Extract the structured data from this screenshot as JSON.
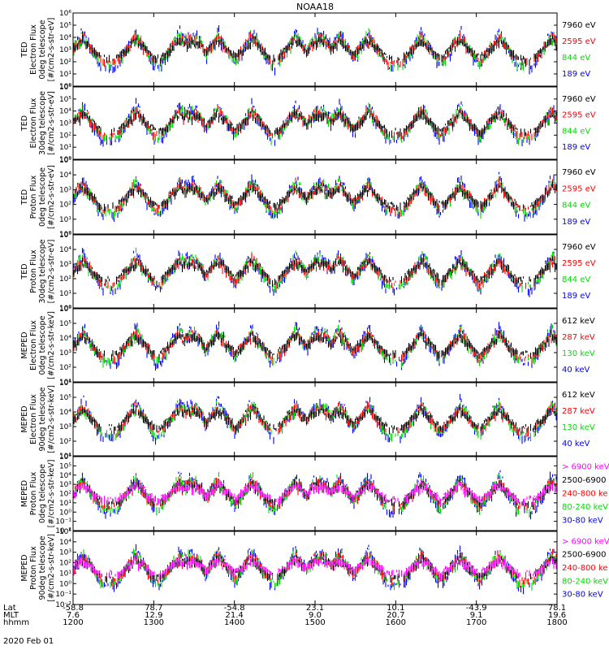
{
  "title": "NOAA18",
  "date": "2020 Feb 01",
  "colors": {
    "blue": "#0000ff",
    "red": "#ff0000",
    "green": "#00dd00",
    "black": "#000000",
    "magenta": "#ff00ff"
  },
  "footer": {
    "row_labels": [
      "Lat",
      "MLT",
      "hhmm"
    ],
    "columns": [
      {
        "lat": "-58.8",
        "mlt": "7.6",
        "hhmm": "1200"
      },
      {
        "lat": "78.7",
        "mlt": "12.9",
        "hhmm": "1300"
      },
      {
        "lat": "-54.8",
        "mlt": "21.4",
        "hhmm": "1400"
      },
      {
        "lat": "23.1",
        "mlt": "9.0",
        "hhmm": "1500"
      },
      {
        "lat": "10.1",
        "mlt": "20.7",
        "hhmm": "1600"
      },
      {
        "lat": "-43.9",
        "mlt": "9.1",
        "hhmm": "1700"
      },
      {
        "lat": "78.1",
        "mlt": "19.6",
        "hhmm": "1800"
      }
    ]
  },
  "chart_data": {
    "type": "line",
    "title": "NOAA18",
    "x_range": [
      "1200",
      "1800"
    ],
    "panels": [
      {
        "ylabel": [
          "TED",
          "Electron Flux",
          "0deg telescope",
          "[#/cm2-s-str-eV]"
        ],
        "ylim_exp": [
          0,
          6
        ],
        "legend": [
          {
            "label": "7960 eV",
            "color": "black"
          },
          {
            "label": "2595 eV",
            "color": "red"
          },
          {
            "label": "844 eV",
            "color": "green"
          },
          {
            "label": "189 eV",
            "color": "blue"
          }
        ]
      },
      {
        "ylabel": [
          "TED",
          "Electron Flux",
          "30deg telescope",
          "[#/cm2-s-str-eV]"
        ],
        "ylim_exp": [
          0,
          6
        ],
        "legend": [
          {
            "label": "7960 eV",
            "color": "black"
          },
          {
            "label": "2595 eV",
            "color": "red"
          },
          {
            "label": "844 eV",
            "color": "green"
          },
          {
            "label": "189 eV",
            "color": "blue"
          }
        ]
      },
      {
        "ylabel": [
          "TED",
          "Proton Flux",
          "0deg telescope",
          "[#/cm2-s-str-eV]"
        ],
        "ylim_exp": [
          0,
          5
        ],
        "legend": [
          {
            "label": "7960 eV",
            "color": "black"
          },
          {
            "label": "2595 eV",
            "color": "red"
          },
          {
            "label": "844 eV",
            "color": "green"
          },
          {
            "label": "189 eV",
            "color": "blue"
          }
        ]
      },
      {
        "ylabel": [
          "TED",
          "Proton Flux",
          "30deg telescope",
          "[#/cm2-s-str-eV]"
        ],
        "ylim_exp": [
          0,
          5
        ],
        "legend": [
          {
            "label": "7960 eV",
            "color": "black"
          },
          {
            "label": "2595 eV",
            "color": "red"
          },
          {
            "label": "844 eV",
            "color": "green"
          },
          {
            "label": "189 eV",
            "color": "blue"
          }
        ]
      },
      {
        "ylabel": [
          "MEPED",
          "Electron Flux",
          "0deg telescope",
          "[#/cm2-s-str-keV]"
        ],
        "ylim_exp": [
          1,
          6
        ],
        "legend": [
          {
            "label": "612 keV",
            "color": "black"
          },
          {
            "label": "287 keV",
            "color": "red"
          },
          {
            "label": "130 keV",
            "color": "green"
          },
          {
            "label": "40 keV",
            "color": "blue"
          }
        ]
      },
      {
        "ylabel": [
          "MEPED",
          "Electron Flux",
          "90deg telescope",
          "[#/cm2-s-str-keV]"
        ],
        "ylim_exp": [
          1,
          6
        ],
        "legend": [
          {
            "label": "612 keV",
            "color": "black"
          },
          {
            "label": "287 keV",
            "color": "red"
          },
          {
            "label": "130 keV",
            "color": "green"
          },
          {
            "label": "40 keV",
            "color": "blue"
          }
        ]
      },
      {
        "ylabel": [
          "MEPED",
          "Proton Flux",
          "0deg telescope",
          "[#/cm2-s-str-keV]"
        ],
        "ylim_exp": [
          -2,
          6
        ],
        "legend": [
          {
            "label": "> 6900 keV",
            "color": "magenta"
          },
          {
            "label": "2500-6900",
            "color": "black"
          },
          {
            "label": "240-800 ke",
            "color": "red"
          },
          {
            "label": "80-240 keV",
            "color": "green"
          },
          {
            "label": "30-80 keV",
            "color": "blue"
          }
        ]
      },
      {
        "ylabel": [
          "MEPED",
          "Proton Flux",
          "90deg telescope",
          "[#/cm2-s-str-keV]"
        ],
        "ylim_exp": [
          -2,
          5
        ],
        "legend": [
          {
            "label": "> 6900 keV",
            "color": "magenta"
          },
          {
            "label": "2500-6900",
            "color": "black"
          },
          {
            "label": "240-800 ke",
            "color": "red"
          },
          {
            "label": "80-240 keV",
            "color": "green"
          },
          {
            "label": "30-80 keV",
            "color": "blue"
          }
        ]
      }
    ]
  }
}
